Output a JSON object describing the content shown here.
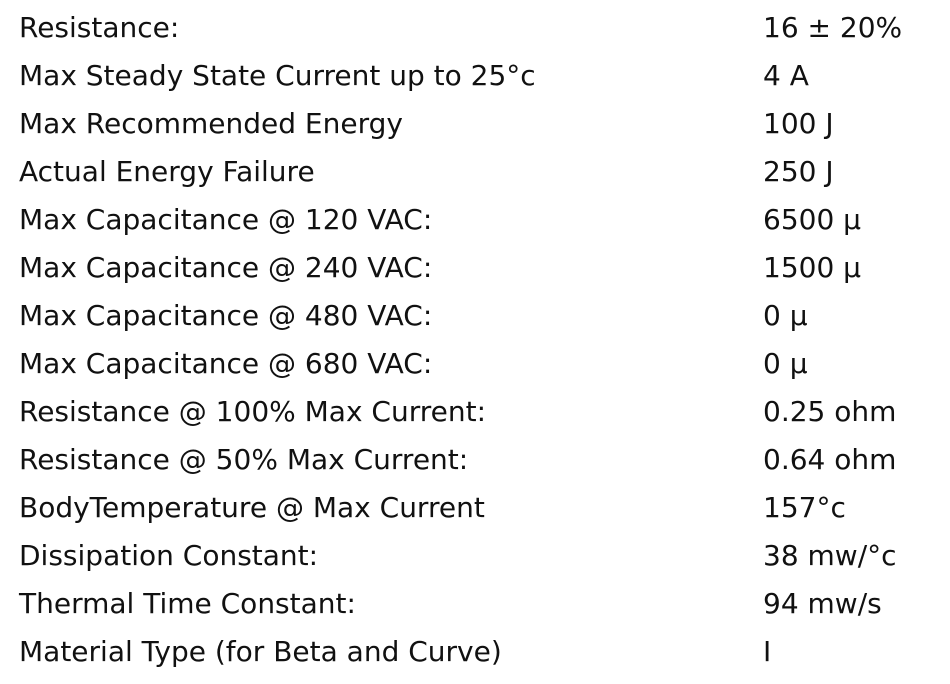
{
  "table": {
    "rows": [
      [
        "Resistance:",
        "16 ± 20%"
      ],
      [
        "Max Steady State Current up to 25°c",
        "4 A"
      ],
      [
        "Max Recommended Energy",
        "100 J"
      ],
      [
        "Actual Energy Failure",
        "250 J"
      ],
      [
        "Max Capacitance @ 120 VAC:",
        "6500 µ"
      ],
      [
        "Max Capacitance @ 240 VAC:",
        "1500 µ"
      ],
      [
        "Max Capacitance @ 480 VAC:",
        "0 µ"
      ],
      [
        "Max Capacitance @ 680 VAC:",
        "0 µ"
      ],
      [
        "Resistance @ 100% Max Current:",
        "0.25 ohm"
      ],
      [
        "Resistance @ 50% Max Current:",
        "0.64 ohm"
      ],
      [
        "BodyTemperature @ Max Current",
        "157°c"
      ],
      [
        "Dissipation Constant:",
        "38 mw/°c"
      ],
      [
        "Thermal Time Constant:",
        "94 mw/s"
      ],
      [
        "Material Type (for Beta and Curve)",
        "I"
      ]
    ]
  }
}
